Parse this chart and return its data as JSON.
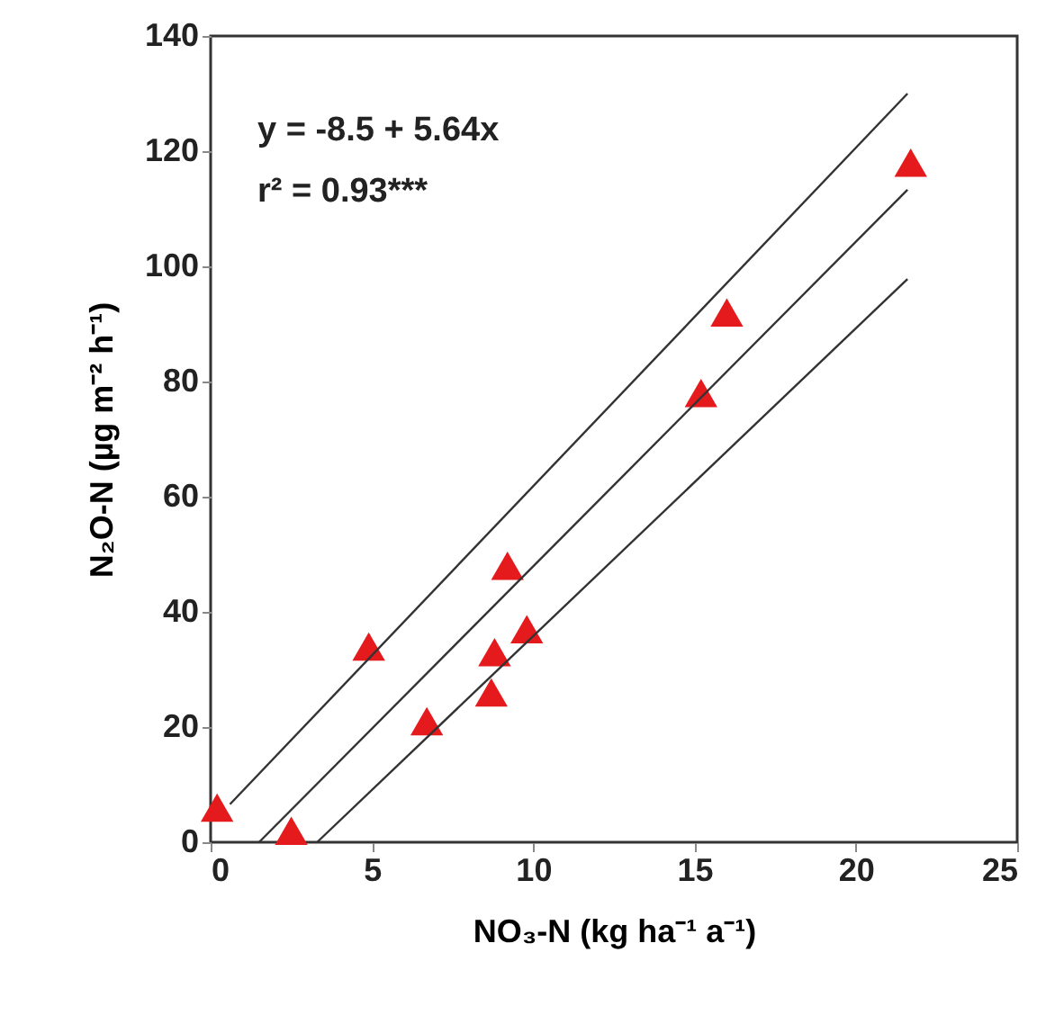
{
  "chart_data": {
    "type": "scatter",
    "xlabel": "NO₃-N (kg ha⁻¹ a⁻¹)",
    "ylabel": "N₂O-N (µg m⁻² h⁻¹)",
    "annotations": [
      "y = -8.5 + 5.64x",
      "r² = 0.93***"
    ],
    "xlim": [
      0,
      25
    ],
    "xticks": [
      0,
      5,
      10,
      15,
      20,
      25
    ],
    "ylim": [
      0,
      140
    ],
    "yticks": [
      0,
      20,
      40,
      60,
      80,
      100,
      120,
      140
    ],
    "grid": false,
    "marker": "triangle",
    "series": [
      {
        "color": "#e41a1c",
        "x": [
          0.2,
          2.5,
          4.9,
          6.7,
          8.7,
          8.8,
          9.2,
          9.8,
          15.2,
          16.0,
          21.7
        ],
        "values": [
          6,
          2,
          34,
          21,
          26,
          33,
          48,
          37,
          78,
          92,
          118
        ]
      },
      {
        "type": "line",
        "color": "#333333",
        "marker": "none",
        "line_style": "solid",
        "x": [
          0.6,
          21.6
        ],
        "values": [
          6.6,
          130
        ]
      },
      {
        "type": "line",
        "color": "#333333",
        "marker": "none",
        "line_style": "solid",
        "x": [
          1.5,
          21.6
        ],
        "values": [
          0,
          113.3
        ]
      },
      {
        "type": "line",
        "color": "#333333",
        "marker": "none",
        "line_style": "solid",
        "x": [
          3.3,
          21.6
        ],
        "values": [
          0,
          97.8
        ]
      }
    ]
  }
}
